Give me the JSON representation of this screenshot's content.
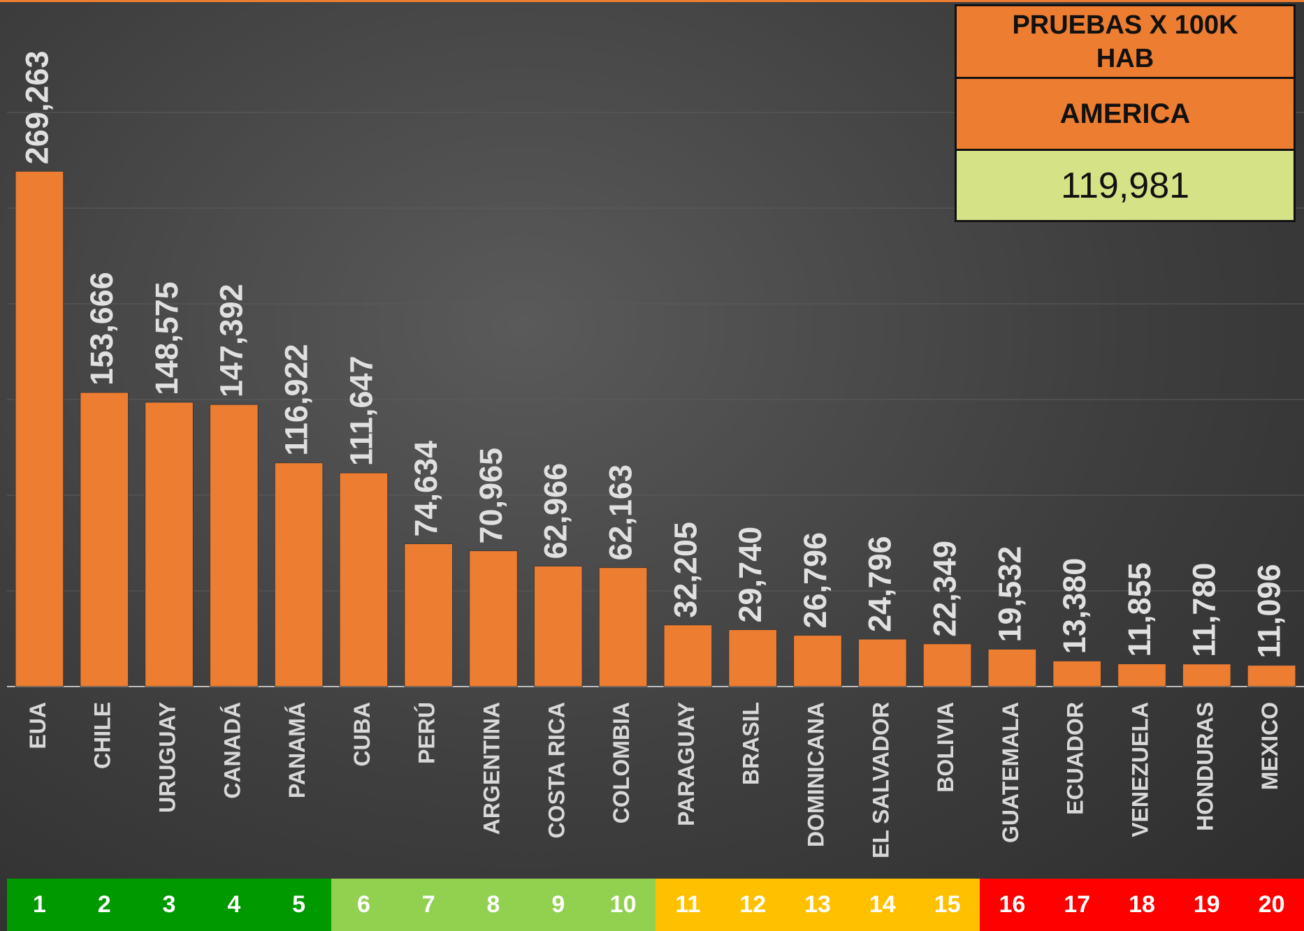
{
  "chart_data": {
    "type": "bar",
    "categories": [
      "EUA",
      "CHILE",
      "URUGUAY",
      "CANADÁ",
      "PANAMÁ",
      "CUBA",
      "PERÚ",
      "ARGENTINA",
      "COSTA RICA",
      "COLOMBIA",
      "PARAGUAY",
      "BRASIL",
      "DOMINICANA",
      "EL SALVADOR",
      "BOLIVIA",
      "GUATEMALA",
      "ECUADOR",
      "VENEZUELA",
      "HONDURAS",
      "MEXICO"
    ],
    "values": [
      269263,
      153666,
      148575,
      147392,
      116922,
      111647,
      74634,
      70965,
      62966,
      62163,
      32205,
      29740,
      26796,
      24796,
      22349,
      19532,
      13380,
      11855,
      11780,
      11096
    ],
    "value_labels": [
      "269,263",
      "153,666",
      "148,575",
      "147,392",
      "116,922",
      "111,647",
      "74,634",
      "70,965",
      "62,966",
      "62,163",
      "32,205",
      "29,740",
      "26,796",
      "24,796",
      "22,349",
      "19,532",
      "13,380",
      "11,855",
      "11,780",
      "11,096"
    ],
    "color": "#ed7d31",
    "ylim": [
      0,
      350000
    ],
    "yticks": [
      0,
      50000,
      100000,
      150000,
      200000,
      250000,
      300000
    ],
    "grid": true,
    "ranks": [
      1,
      2,
      3,
      4,
      5,
      6,
      7,
      8,
      9,
      10,
      11,
      12,
      13,
      14,
      15,
      16,
      17,
      18,
      19,
      20
    ],
    "rank_colors": [
      "#009900",
      "#009900",
      "#009900",
      "#009900",
      "#009900",
      "#92d050",
      "#92d050",
      "#92d050",
      "#92d050",
      "#92d050",
      "#ffc000",
      "#ffc000",
      "#ffc000",
      "#ffc000",
      "#ffc000",
      "#ff0000",
      "#ff0000",
      "#ff0000",
      "#ff0000",
      "#ff0000"
    ],
    "box": {
      "title": "PRUEBAS X 100K HAB",
      "region": "AMERICA",
      "value": "119,981"
    }
  }
}
